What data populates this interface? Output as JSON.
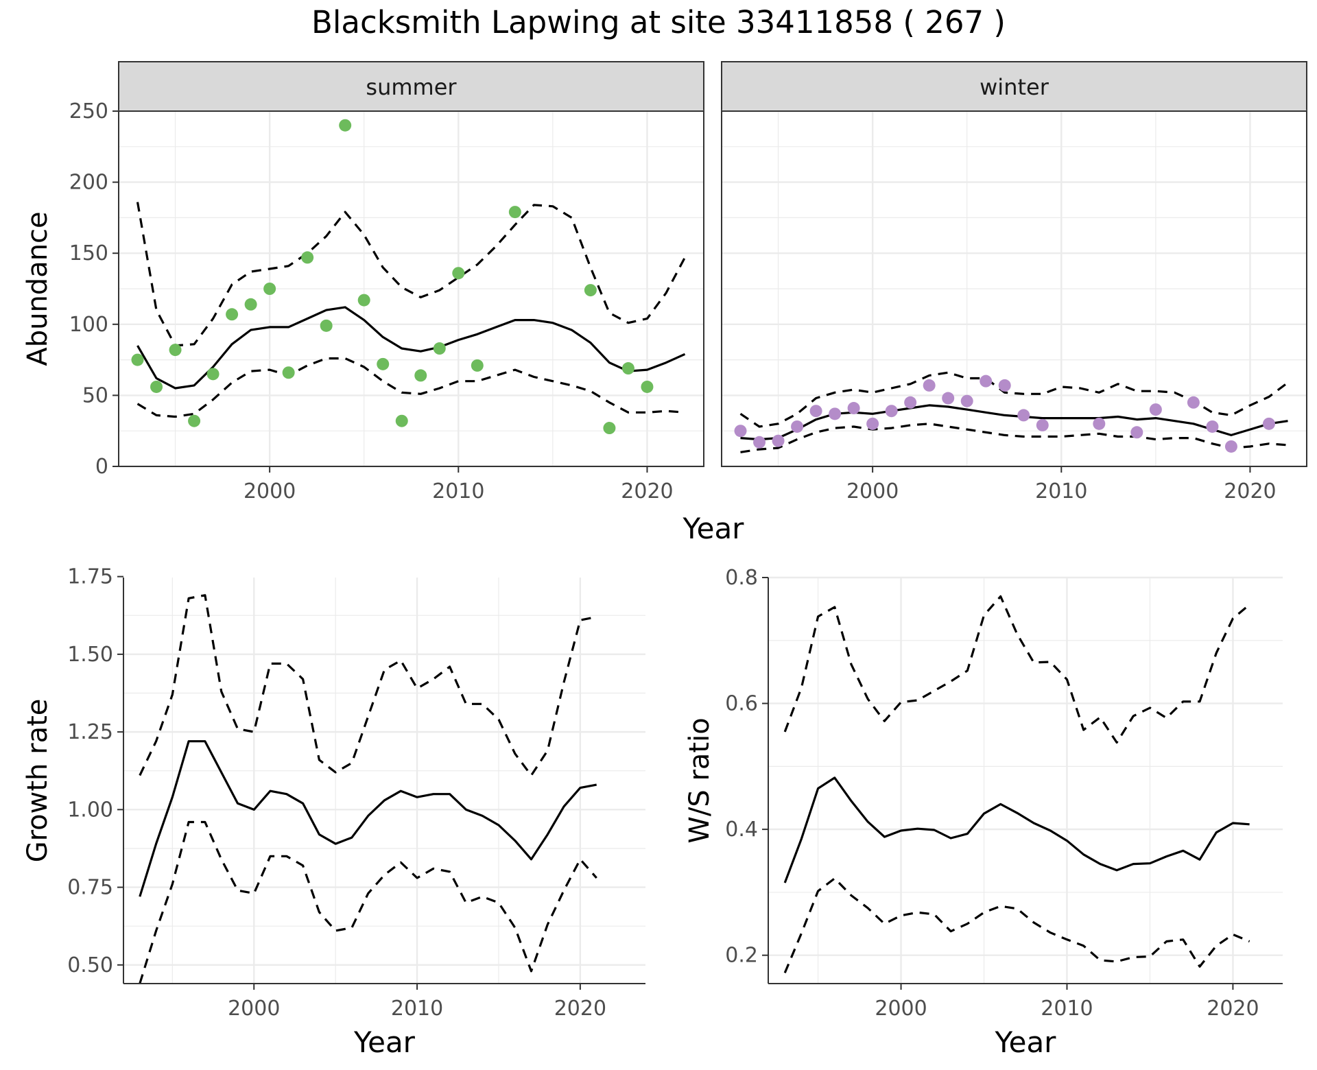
{
  "title": "Blacksmith Lapwing at site 33411858 ( 267 )",
  "colors": {
    "summer_points": "#6dbb5c",
    "winter_points": "#b48cc9",
    "line": "#000000",
    "strip_bg": "#d9d9d9",
    "grid": "#ebebeb"
  },
  "chart_data": [
    {
      "type": "scatter",
      "facet": "summer",
      "xlabel": "Year",
      "ylabel": "Abundance",
      "xlim": [
        1992,
        2023
      ],
      "ylim": [
        0,
        250
      ],
      "x_ticks": [
        2000,
        2010,
        2020
      ],
      "y_ticks": [
        0,
        50,
        100,
        150,
        200,
        250
      ],
      "grid": true,
      "points": {
        "x": [
          1993,
          1994,
          1995,
          1996,
          1997,
          1998,
          1999,
          2000,
          2001,
          2002,
          2003,
          2004,
          2005,
          2006,
          2007,
          2008,
          2009,
          2010,
          2011,
          2013,
          2017,
          2018,
          2019,
          2020
        ],
        "y": [
          75,
          56,
          82,
          32,
          65,
          107,
          114,
          125,
          66,
          147,
          99,
          240,
          117,
          72,
          32,
          64,
          83,
          136,
          71,
          179,
          124,
          27,
          69,
          56
        ]
      },
      "series": [
        {
          "style": "solid",
          "x": [
            1993,
            1994,
            1995,
            1996,
            1997,
            1998,
            1999,
            2000,
            2001,
            2002,
            2003,
            2004,
            2005,
            2006,
            2007,
            2008,
            2009,
            2010,
            2011,
            2012,
            2013,
            2014,
            2015,
            2016,
            2017,
            2018,
            2019,
            2020,
            2021,
            2022
          ],
          "y": [
            85,
            62,
            55,
            57,
            70,
            86,
            96,
            98,
            98,
            104,
            110,
            112,
            103,
            91,
            83,
            81,
            84,
            89,
            93,
            98,
            103,
            103,
            101,
            96,
            87,
            73,
            67,
            68,
            73,
            79
          ]
        },
        {
          "style": "dashed",
          "x": [
            1993,
            1994,
            1995,
            1996,
            1997,
            1998,
            1999,
            2000,
            2001,
            2002,
            2003,
            2004,
            2005,
            2006,
            2007,
            2008,
            2009,
            2010,
            2011,
            2012,
            2013,
            2014,
            2015,
            2016,
            2017,
            2018,
            2019,
            2020,
            2021,
            2022
          ],
          "y": [
            186,
            110,
            85,
            86,
            104,
            128,
            137,
            139,
            141,
            150,
            162,
            179,
            163,
            140,
            126,
            119,
            124,
            133,
            142,
            155,
            170,
            184,
            183,
            175,
            140,
            108,
            101,
            104,
            122,
            147
          ]
        },
        {
          "style": "dashed",
          "x": [
            1993,
            1994,
            1995,
            1996,
            1997,
            1998,
            1999,
            2000,
            2001,
            2002,
            2003,
            2004,
            2005,
            2006,
            2007,
            2008,
            2009,
            2010,
            2011,
            2012,
            2013,
            2014,
            2015,
            2016,
            2017,
            2018,
            2019,
            2020,
            2021,
            2022
          ],
          "y": [
            44,
            36,
            35,
            37,
            47,
            59,
            67,
            68,
            64,
            71,
            76,
            76,
            70,
            60,
            52,
            51,
            55,
            60,
            60,
            64,
            68,
            63,
            60,
            57,
            53,
            45,
            38,
            38,
            39,
            38
          ]
        }
      ]
    },
    {
      "type": "scatter",
      "facet": "winter",
      "xlabel": "Year",
      "ylabel": "",
      "xlim": [
        1992,
        2023
      ],
      "ylim": [
        0,
        250
      ],
      "x_ticks": [
        2000,
        2010,
        2020
      ],
      "y_ticks": [
        0,
        50,
        100,
        150,
        200,
        250
      ],
      "grid": true,
      "points": {
        "x": [
          1993,
          1994,
          1995,
          1996,
          1997,
          1998,
          1999,
          2000,
          2001,
          2002,
          2003,
          2004,
          2005,
          2006,
          2007,
          2008,
          2009,
          2012,
          2014,
          2015,
          2017,
          2018,
          2019,
          2021
        ],
        "y": [
          25,
          17,
          18,
          28,
          39,
          37,
          41,
          30,
          39,
          45,
          57,
          48,
          46,
          60,
          57,
          36,
          29,
          30,
          24,
          40,
          45,
          28,
          14,
          30
        ]
      },
      "series": [
        {
          "style": "solid",
          "x": [
            1993,
            1994,
            1995,
            1996,
            1997,
            1998,
            1999,
            2000,
            2001,
            2002,
            2003,
            2004,
            2005,
            2006,
            2007,
            2008,
            2009,
            2010,
            2011,
            2012,
            2013,
            2014,
            2015,
            2016,
            2017,
            2018,
            2019,
            2020,
            2021,
            2022
          ],
          "y": [
            20,
            19,
            20,
            26,
            33,
            37,
            38,
            37,
            39,
            41,
            43,
            42,
            40,
            38,
            36,
            35,
            34,
            34,
            34,
            34,
            35,
            33,
            34,
            32,
            30,
            26,
            22,
            26,
            30,
            32
          ]
        },
        {
          "style": "dashed",
          "x": [
            1993,
            1994,
            1995,
            1996,
            1997,
            1998,
            1999,
            2000,
            2001,
            2002,
            2003,
            2004,
            2005,
            2006,
            2007,
            2008,
            2009,
            2010,
            2011,
            2012,
            2013,
            2014,
            2015,
            2016,
            2017,
            2018,
            2019,
            2020,
            2021,
            2022
          ],
          "y": [
            37,
            28,
            30,
            37,
            48,
            52,
            54,
            52,
            55,
            58,
            64,
            66,
            62,
            62,
            52,
            51,
            51,
            56,
            55,
            52,
            58,
            53,
            53,
            52,
            46,
            38,
            36,
            43,
            49,
            59
          ]
        },
        {
          "style": "dashed",
          "x": [
            1993,
            1994,
            1995,
            1996,
            1997,
            1998,
            1999,
            2000,
            2001,
            2002,
            2003,
            2004,
            2005,
            2006,
            2007,
            2008,
            2009,
            2010,
            2011,
            2012,
            2013,
            2014,
            2015,
            2016,
            2017,
            2018,
            2019,
            2020,
            2021,
            2022
          ],
          "y": [
            10,
            12,
            13,
            19,
            24,
            27,
            28,
            26,
            27,
            29,
            30,
            28,
            26,
            24,
            22,
            21,
            21,
            21,
            22,
            23,
            21,
            21,
            19,
            20,
            20,
            16,
            13,
            14,
            16,
            15
          ]
        }
      ]
    },
    {
      "type": "line",
      "xlabel": "Year",
      "ylabel": "Growth rate",
      "xlim": [
        1992,
        2024
      ],
      "ylim": [
        0.44,
        1.747
      ],
      "x_ticks": [
        2000,
        2010,
        2020
      ],
      "y_ticks": [
        0.5,
        0.75,
        1.0,
        1.25,
        1.5,
        1.75
      ],
      "y_tick_labels": [
        "0.50",
        "0.75",
        "1.00",
        "1.25",
        "1.50",
        "1.75"
      ],
      "grid": true,
      "series": [
        {
          "style": "solid",
          "x": [
            1993,
            1994,
            1995,
            1996,
            1997,
            1998,
            1999,
            2000,
            2001,
            2002,
            2003,
            2004,
            2005,
            2006,
            2007,
            2008,
            2009,
            2010,
            2011,
            2012,
            2013,
            2014,
            2015,
            2016,
            2017,
            2018,
            2019,
            2020,
            2021
          ],
          "y": [
            0.72,
            0.89,
            1.04,
            1.22,
            1.22,
            1.12,
            1.02,
            1.0,
            1.06,
            1.05,
            1.02,
            0.92,
            0.89,
            0.91,
            0.98,
            1.03,
            1.06,
            1.04,
            1.05,
            1.05,
            1.0,
            0.98,
            0.95,
            0.9,
            0.84,
            0.92,
            1.01,
            1.07,
            1.08
          ]
        },
        {
          "style": "dashed",
          "x": [
            1993,
            1994,
            1995,
            1996,
            1997,
            1998,
            1999,
            2000,
            2001,
            2002,
            2003,
            2004,
            2005,
            2006,
            2007,
            2008,
            2009,
            2010,
            2011,
            2012,
            2013,
            2014,
            2015,
            2016,
            2017,
            2018,
            2019,
            2020,
            2021
          ],
          "y": [
            1.11,
            1.22,
            1.37,
            1.68,
            1.69,
            1.38,
            1.26,
            1.25,
            1.47,
            1.47,
            1.42,
            1.16,
            1.12,
            1.15,
            1.3,
            1.45,
            1.48,
            1.39,
            1.42,
            1.46,
            1.34,
            1.34,
            1.29,
            1.18,
            1.11,
            1.19,
            1.41,
            1.61,
            1.62
          ]
        },
        {
          "style": "dashed",
          "x": [
            1993,
            1994,
            1995,
            1996,
            1997,
            1998,
            1999,
            2000,
            2001,
            2002,
            2003,
            2004,
            2005,
            2006,
            2007,
            2008,
            2009,
            2010,
            2011,
            2012,
            2013,
            2014,
            2015,
            2016,
            2017,
            2018,
            2019,
            2020,
            2021
          ],
          "y": [
            0.44,
            0.61,
            0.76,
            0.96,
            0.96,
            0.84,
            0.74,
            0.73,
            0.85,
            0.85,
            0.82,
            0.67,
            0.61,
            0.62,
            0.73,
            0.79,
            0.83,
            0.78,
            0.81,
            0.8,
            0.7,
            0.72,
            0.7,
            0.62,
            0.48,
            0.63,
            0.74,
            0.84,
            0.78
          ]
        }
      ]
    },
    {
      "type": "line",
      "xlabel": "Year",
      "ylabel": "W/S ratio",
      "xlim": [
        1992,
        2023
      ],
      "ylim": [
        0.155,
        0.8
      ],
      "x_ticks": [
        2000,
        2010,
        2020
      ],
      "y_ticks": [
        0.2,
        0.4,
        0.6,
        0.8
      ],
      "y_tick_labels": [
        "0.2",
        "0.4",
        "0.6",
        "0.8"
      ],
      "grid": true,
      "series": [
        {
          "style": "solid",
          "x": [
            1993,
            1994,
            1995,
            1996,
            1997,
            1998,
            1999,
            2000,
            2001,
            2002,
            2003,
            2004,
            2005,
            2006,
            2007,
            2008,
            2009,
            2010,
            2011,
            2012,
            2013,
            2014,
            2015,
            2016,
            2017,
            2018,
            2019,
            2020,
            2021
          ],
          "y": [
            0.315,
            0.385,
            0.465,
            0.482,
            0.445,
            0.412,
            0.388,
            0.398,
            0.401,
            0.399,
            0.386,
            0.393,
            0.425,
            0.44,
            0.426,
            0.41,
            0.398,
            0.382,
            0.36,
            0.345,
            0.335,
            0.345,
            0.346,
            0.357,
            0.366,
            0.352,
            0.395,
            0.41,
            0.408
          ]
        },
        {
          "style": "dashed",
          "x": [
            1993,
            1994,
            1995,
            1996,
            1997,
            1998,
            1999,
            2000,
            2001,
            2002,
            2003,
            2004,
            2005,
            2006,
            2007,
            2008,
            2009,
            2010,
            2011,
            2012,
            2013,
            2014,
            2015,
            2016,
            2017,
            2018,
            2019,
            2020,
            2021
          ],
          "y": [
            0.555,
            0.625,
            0.738,
            0.753,
            0.662,
            0.607,
            0.572,
            0.602,
            0.605,
            0.62,
            0.635,
            0.652,
            0.74,
            0.77,
            0.71,
            0.665,
            0.666,
            0.638,
            0.558,
            0.578,
            0.538,
            0.58,
            0.593,
            0.577,
            0.603,
            0.603,
            0.68,
            0.735,
            0.757
          ]
        },
        {
          "style": "dashed",
          "x": [
            1993,
            1994,
            1995,
            1996,
            1997,
            1998,
            1999,
            2000,
            2001,
            2002,
            2003,
            2004,
            2005,
            2006,
            2007,
            2008,
            2009,
            2010,
            2011,
            2012,
            2013,
            2014,
            2015,
            2016,
            2017,
            2018,
            2019,
            2020,
            2021
          ],
          "y": [
            0.172,
            0.235,
            0.302,
            0.322,
            0.295,
            0.275,
            0.25,
            0.263,
            0.268,
            0.265,
            0.238,
            0.25,
            0.268,
            0.278,
            0.274,
            0.252,
            0.236,
            0.225,
            0.215,
            0.192,
            0.19,
            0.197,
            0.198,
            0.222,
            0.225,
            0.182,
            0.215,
            0.233,
            0.222
          ]
        }
      ]
    }
  ]
}
